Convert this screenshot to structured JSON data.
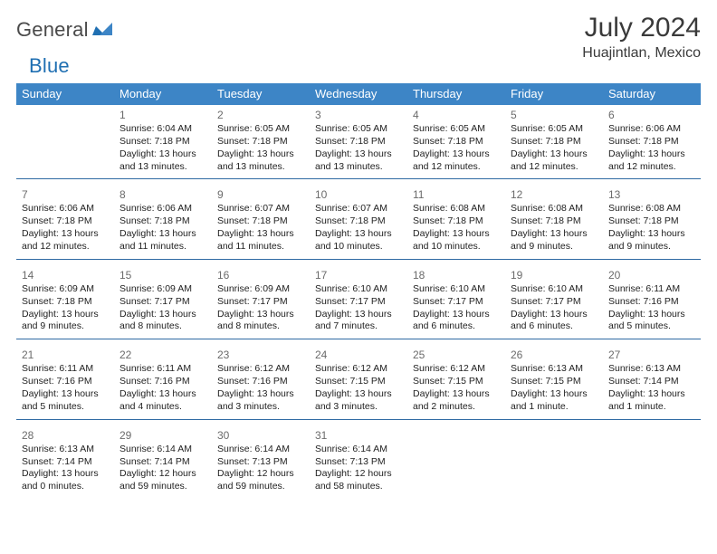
{
  "brand": {
    "gray": "General",
    "blue": "Blue"
  },
  "title": "July 2024",
  "location": "Huajintlan, Mexico",
  "colors": {
    "header_bg": "#3d85c6",
    "header_text": "#ffffff",
    "rule": "#2f6aa3",
    "daynum": "#6b6b6b",
    "body_text": "#222222",
    "logo_gray": "#4a4a4a",
    "logo_blue": "#1f6fb2"
  },
  "dow": [
    "Sunday",
    "Monday",
    "Tuesday",
    "Wednesday",
    "Thursday",
    "Friday",
    "Saturday"
  ],
  "weeks": [
    [
      {
        "n": "",
        "sr": "",
        "ss": "",
        "d1": "",
        "d2": ""
      },
      {
        "n": "1",
        "sr": "Sunrise: 6:04 AM",
        "ss": "Sunset: 7:18 PM",
        "d1": "Daylight: 13 hours",
        "d2": "and 13 minutes."
      },
      {
        "n": "2",
        "sr": "Sunrise: 6:05 AM",
        "ss": "Sunset: 7:18 PM",
        "d1": "Daylight: 13 hours",
        "d2": "and 13 minutes."
      },
      {
        "n": "3",
        "sr": "Sunrise: 6:05 AM",
        "ss": "Sunset: 7:18 PM",
        "d1": "Daylight: 13 hours",
        "d2": "and 13 minutes."
      },
      {
        "n": "4",
        "sr": "Sunrise: 6:05 AM",
        "ss": "Sunset: 7:18 PM",
        "d1": "Daylight: 13 hours",
        "d2": "and 12 minutes."
      },
      {
        "n": "5",
        "sr": "Sunrise: 6:05 AM",
        "ss": "Sunset: 7:18 PM",
        "d1": "Daylight: 13 hours",
        "d2": "and 12 minutes."
      },
      {
        "n": "6",
        "sr": "Sunrise: 6:06 AM",
        "ss": "Sunset: 7:18 PM",
        "d1": "Daylight: 13 hours",
        "d2": "and 12 minutes."
      }
    ],
    [
      {
        "n": "7",
        "sr": "Sunrise: 6:06 AM",
        "ss": "Sunset: 7:18 PM",
        "d1": "Daylight: 13 hours",
        "d2": "and 12 minutes."
      },
      {
        "n": "8",
        "sr": "Sunrise: 6:06 AM",
        "ss": "Sunset: 7:18 PM",
        "d1": "Daylight: 13 hours",
        "d2": "and 11 minutes."
      },
      {
        "n": "9",
        "sr": "Sunrise: 6:07 AM",
        "ss": "Sunset: 7:18 PM",
        "d1": "Daylight: 13 hours",
        "d2": "and 11 minutes."
      },
      {
        "n": "10",
        "sr": "Sunrise: 6:07 AM",
        "ss": "Sunset: 7:18 PM",
        "d1": "Daylight: 13 hours",
        "d2": "and 10 minutes."
      },
      {
        "n": "11",
        "sr": "Sunrise: 6:08 AM",
        "ss": "Sunset: 7:18 PM",
        "d1": "Daylight: 13 hours",
        "d2": "and 10 minutes."
      },
      {
        "n": "12",
        "sr": "Sunrise: 6:08 AM",
        "ss": "Sunset: 7:18 PM",
        "d1": "Daylight: 13 hours",
        "d2": "and 9 minutes."
      },
      {
        "n": "13",
        "sr": "Sunrise: 6:08 AM",
        "ss": "Sunset: 7:18 PM",
        "d1": "Daylight: 13 hours",
        "d2": "and 9 minutes."
      }
    ],
    [
      {
        "n": "14",
        "sr": "Sunrise: 6:09 AM",
        "ss": "Sunset: 7:18 PM",
        "d1": "Daylight: 13 hours",
        "d2": "and 9 minutes."
      },
      {
        "n": "15",
        "sr": "Sunrise: 6:09 AM",
        "ss": "Sunset: 7:17 PM",
        "d1": "Daylight: 13 hours",
        "d2": "and 8 minutes."
      },
      {
        "n": "16",
        "sr": "Sunrise: 6:09 AM",
        "ss": "Sunset: 7:17 PM",
        "d1": "Daylight: 13 hours",
        "d2": "and 8 minutes."
      },
      {
        "n": "17",
        "sr": "Sunrise: 6:10 AM",
        "ss": "Sunset: 7:17 PM",
        "d1": "Daylight: 13 hours",
        "d2": "and 7 minutes."
      },
      {
        "n": "18",
        "sr": "Sunrise: 6:10 AM",
        "ss": "Sunset: 7:17 PM",
        "d1": "Daylight: 13 hours",
        "d2": "and 6 minutes."
      },
      {
        "n": "19",
        "sr": "Sunrise: 6:10 AM",
        "ss": "Sunset: 7:17 PM",
        "d1": "Daylight: 13 hours",
        "d2": "and 6 minutes."
      },
      {
        "n": "20",
        "sr": "Sunrise: 6:11 AM",
        "ss": "Sunset: 7:16 PM",
        "d1": "Daylight: 13 hours",
        "d2": "and 5 minutes."
      }
    ],
    [
      {
        "n": "21",
        "sr": "Sunrise: 6:11 AM",
        "ss": "Sunset: 7:16 PM",
        "d1": "Daylight: 13 hours",
        "d2": "and 5 minutes."
      },
      {
        "n": "22",
        "sr": "Sunrise: 6:11 AM",
        "ss": "Sunset: 7:16 PM",
        "d1": "Daylight: 13 hours",
        "d2": "and 4 minutes."
      },
      {
        "n": "23",
        "sr": "Sunrise: 6:12 AM",
        "ss": "Sunset: 7:16 PM",
        "d1": "Daylight: 13 hours",
        "d2": "and 3 minutes."
      },
      {
        "n": "24",
        "sr": "Sunrise: 6:12 AM",
        "ss": "Sunset: 7:15 PM",
        "d1": "Daylight: 13 hours",
        "d2": "and 3 minutes."
      },
      {
        "n": "25",
        "sr": "Sunrise: 6:12 AM",
        "ss": "Sunset: 7:15 PM",
        "d1": "Daylight: 13 hours",
        "d2": "and 2 minutes."
      },
      {
        "n": "26",
        "sr": "Sunrise: 6:13 AM",
        "ss": "Sunset: 7:15 PM",
        "d1": "Daylight: 13 hours",
        "d2": "and 1 minute."
      },
      {
        "n": "27",
        "sr": "Sunrise: 6:13 AM",
        "ss": "Sunset: 7:14 PM",
        "d1": "Daylight: 13 hours",
        "d2": "and 1 minute."
      }
    ],
    [
      {
        "n": "28",
        "sr": "Sunrise: 6:13 AM",
        "ss": "Sunset: 7:14 PM",
        "d1": "Daylight: 13 hours",
        "d2": "and 0 minutes."
      },
      {
        "n": "29",
        "sr": "Sunrise: 6:14 AM",
        "ss": "Sunset: 7:14 PM",
        "d1": "Daylight: 12 hours",
        "d2": "and 59 minutes."
      },
      {
        "n": "30",
        "sr": "Sunrise: 6:14 AM",
        "ss": "Sunset: 7:13 PM",
        "d1": "Daylight: 12 hours",
        "d2": "and 59 minutes."
      },
      {
        "n": "31",
        "sr": "Sunrise: 6:14 AM",
        "ss": "Sunset: 7:13 PM",
        "d1": "Daylight: 12 hours",
        "d2": "and 58 minutes."
      },
      {
        "n": "",
        "sr": "",
        "ss": "",
        "d1": "",
        "d2": ""
      },
      {
        "n": "",
        "sr": "",
        "ss": "",
        "d1": "",
        "d2": ""
      },
      {
        "n": "",
        "sr": "",
        "ss": "",
        "d1": "",
        "d2": ""
      }
    ]
  ]
}
